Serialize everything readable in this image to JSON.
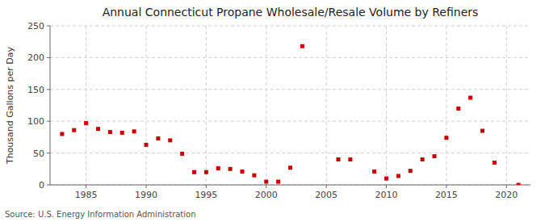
{
  "chart_data": {
    "type": "scatter",
    "title": "Annual Connecticut Propane Wholesale/Resale Volume by Refiners",
    "ylabel": "Thousand Gallons per Day",
    "source": "Source: U.S. Energy Information Administration",
    "x": [
      1983,
      1984,
      1985,
      1986,
      1987,
      1988,
      1989,
      1990,
      1991,
      1992,
      1993,
      1994,
      1995,
      1996,
      1997,
      1998,
      1999,
      2000,
      2001,
      2002,
      2003,
      2006,
      2007,
      2009,
      2010,
      2011,
      2012,
      2013,
      2014,
      2015,
      2016,
      2017,
      2018,
      2019,
      2021
    ],
    "values": [
      80,
      86,
      97,
      88,
      83,
      82,
      84,
      63,
      73,
      70,
      49,
      20,
      20,
      26,
      25,
      21,
      15,
      5,
      5,
      27,
      218,
      40,
      40,
      21,
      10,
      14,
      22,
      40,
      45,
      74,
      120,
      137,
      85,
      35,
      0
    ],
    "color": "#cc0000",
    "marker": "square",
    "xlim": [
      1982,
      2022
    ],
    "ylim": [
      0,
      250
    ],
    "xticks": [
      1985,
      1990,
      1995,
      2000,
      2005,
      2010,
      2015,
      2020
    ],
    "yticks": [
      0,
      50,
      100,
      150,
      200,
      250
    ],
    "grid": true
  }
}
